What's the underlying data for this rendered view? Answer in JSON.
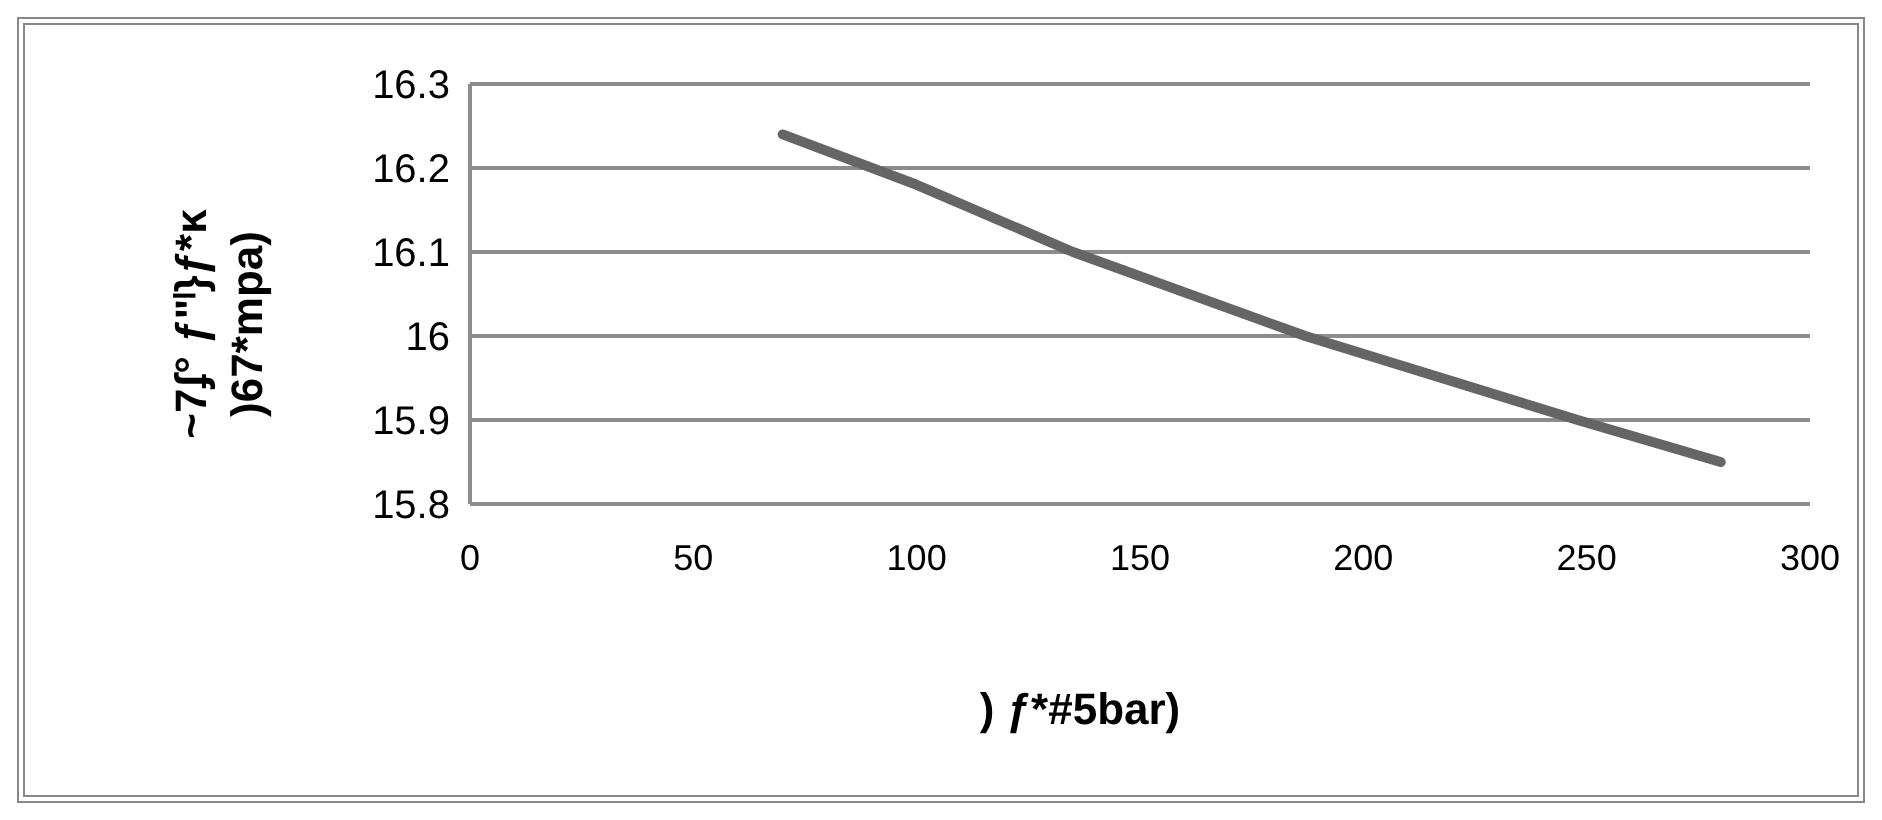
{
  "chart_data": {
    "type": "line",
    "xlabel": ") ƒ*#5bar)",
    "ylabel": "~7ʄ° ƒ\"ˡ}ƒ*ĸ\n)67*mpa)",
    "x": [
      70,
      100,
      135,
      187,
      248,
      280
    ],
    "series": [
      {
        "color": "#656565",
        "values": [
          16.24,
          16.18,
          16.1,
          16.0,
          15.9,
          15.85
        ]
      }
    ],
    "xlim": [
      0,
      300
    ],
    "xticks": [
      0,
      50,
      100,
      150,
      200,
      250,
      300
    ],
    "ylim": [
      15.8,
      16.3
    ],
    "yticks": [
      15.8,
      15.9,
      {
        "value": 16,
        "label": "16"
      },
      16.1,
      16.2,
      16.3
    ],
    "grid": "y",
    "marker": "none",
    "line_style": "solid"
  }
}
